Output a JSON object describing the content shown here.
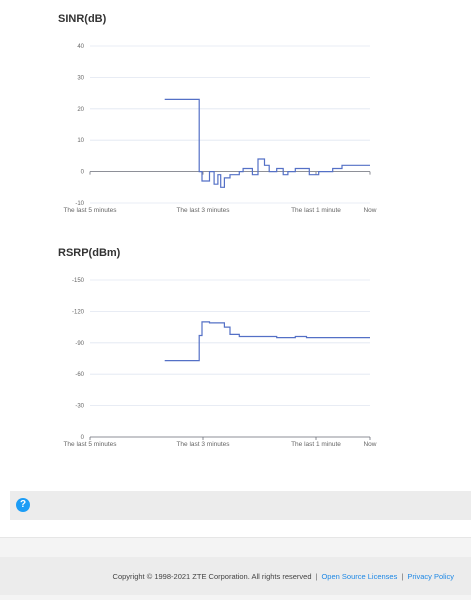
{
  "charts": {
    "sinr": {
      "title": "SINR(dB)"
    },
    "rsrp": {
      "title": "RSRP(dBm)"
    }
  },
  "chart_data": [
    {
      "type": "line",
      "title": "SINR(dB)",
      "ylim": [
        -10,
        40
      ],
      "yticks": [
        "40",
        "30",
        "20",
        "10",
        "0",
        "-10"
      ],
      "xtick_labels": [
        "The last 5 minutes",
        "The last 3 minutes",
        "The last 1 minute",
        "Now"
      ],
      "xlim": [
        0,
        300
      ],
      "grid": true,
      "series": [
        {
          "color": "#5470c6",
          "x": [
            80,
            80,
            117,
            117,
            120,
            120,
            128,
            128,
            133,
            133,
            137,
            137,
            140,
            140,
            144,
            144,
            150,
            150,
            160,
            160,
            164,
            164,
            174,
            174,
            180,
            180,
            187,
            187,
            192,
            192,
            200,
            200,
            207,
            207,
            212,
            212,
            220,
            220,
            235,
            235,
            245,
            245,
            255,
            255,
            260,
            260,
            270,
            270,
            280,
            280,
            300
          ],
          "y": [
            23,
            23,
            23,
            0,
            0,
            -3,
            -3,
            0,
            0,
            -4,
            -4,
            -1,
            -1,
            -5,
            -5,
            -2,
            -2,
            -1,
            -1,
            0,
            0,
            1,
            1,
            -1,
            -1,
            4,
            4,
            2,
            2,
            0,
            0,
            1,
            1,
            -1,
            -1,
            0,
            0,
            1,
            1,
            -1,
            -1,
            0,
            0,
            0,
            0,
            1,
            1,
            2,
            2,
            2,
            2
          ]
        }
      ]
    },
    {
      "type": "line",
      "title": "RSRP(dBm)",
      "ylim": [
        -150,
        0
      ],
      "y_axis_inverted": true,
      "yticks": [
        "-150",
        "-120",
        "-90",
        "-60",
        "-30",
        "0"
      ],
      "xtick_labels": [
        "The last 5 minutes",
        "The last 3 minutes",
        "The last 1 minute",
        "Now"
      ],
      "xlim": [
        0,
        300
      ],
      "grid": true,
      "series": [
        {
          "color": "#5470c6",
          "x": [
            80,
            117,
            117,
            120,
            120,
            128,
            128,
            144,
            144,
            150,
            150,
            160,
            160,
            180,
            180,
            200,
            200,
            220,
            220,
            232,
            232,
            240,
            240,
            300
          ],
          "y": [
            -73,
            -73,
            -97,
            -97,
            -110,
            -110,
            -109,
            -109,
            -105,
            -105,
            -98,
            -98,
            -96,
            -96,
            -96,
            -96,
            -95,
            -95,
            -96,
            -96,
            -95,
            -95,
            -95,
            -95
          ]
        }
      ]
    }
  ],
  "help": {
    "icon": "question-icon",
    "glyph": "?"
  },
  "footer": {
    "copyright": "Copyright © 1998-2021 ZTE Corporation. All rights reserved",
    "sep1": "|",
    "open_source_label": "Open Source Licenses",
    "sep2": "|",
    "privacy_label": "Privacy Policy"
  },
  "colors": {
    "accent": "#1c9df6",
    "line": "#5470c6",
    "link": "#1e88e5"
  }
}
